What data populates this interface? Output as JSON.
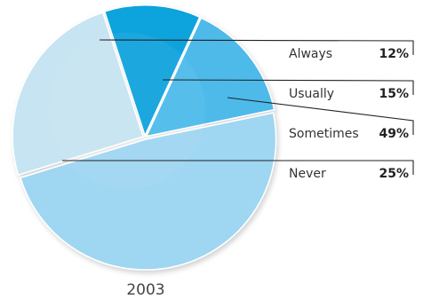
{
  "chart_data": {
    "type": "pie",
    "slices": [
      {
        "label": "Always",
        "value": 12,
        "display": "12%",
        "color": "#0FA3DD"
      },
      {
        "label": "Usually",
        "value": 15,
        "display": "15%",
        "color": "#4DBAEA"
      },
      {
        "label": "Sometimes",
        "value": 49,
        "display": "49%",
        "color": "#9FD6F2"
      },
      {
        "label": "Never",
        "value": 25,
        "display": "25%",
        "color": "#C6E4F2"
      }
    ],
    "caption": "2003",
    "legend_position": "right"
  }
}
